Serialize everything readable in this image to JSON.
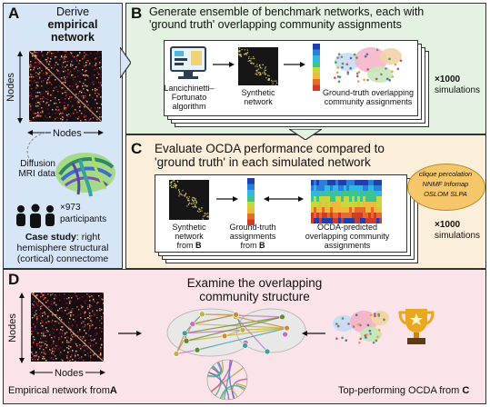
{
  "panelA": {
    "letter": "A",
    "title_line1": "Derive",
    "title_line2": "empirical",
    "title_line3": "network",
    "axis_y": "Nodes",
    "axis_x": "Nodes",
    "mri_line1": "Diffusion",
    "mri_line2": "MRI data",
    "participants_count": "×973",
    "participants_label": "participants",
    "case_bold": "Case study",
    "case_rest1": ": right",
    "case_rest2": "hemisphere structural",
    "case_rest3": "(cortical) connectome"
  },
  "panelB": {
    "letter": "B",
    "title_line1": "Generate ensemble of benchmark networks, each with",
    "title_line2": "'ground truth' overlapping community assignments",
    "algo_line1": "Lancichinetti–",
    "algo_line2": "Fortunato",
    "algo_line3": "algorithm",
    "synthetic_line1": "Synthetic",
    "synthetic_line2": "network",
    "gt_line1": "Ground-truth overlapping",
    "gt_line2": "community assignments",
    "sim_count": "×1000",
    "sim_label": "simulations"
  },
  "panelC": {
    "letter": "C",
    "title_line1": "Evaluate OCDA performance compared to",
    "title_line2": "'ground truth' in each simulated network",
    "syn_line1": "Synthetic",
    "syn_line2": "network",
    "syn_line3": "from",
    "syn_ref": "B",
    "gt_line1": "Ground-truth",
    "gt_line2": "assignments",
    "gt_line3": "from",
    "gt_ref": "B",
    "pred_line1": "OCDA-predicted",
    "pred_line2": "overlapping community",
    "pred_line3": "assignments",
    "algos_line1": "clique percolation",
    "algos_line2": "NNMF  Infomap",
    "algos_line3": "OSLOM  SLPA",
    "sim_count": "×1000",
    "sim_label": "simulations"
  },
  "panelD": {
    "letter": "D",
    "title_line1": "Examine the overlapping",
    "title_line2": "community structure",
    "axis_y": "Nodes",
    "axis_x": "Nodes",
    "emp_label": "Empirical network from",
    "emp_ref": "A",
    "top_label": "Top-performing OCDA from",
    "top_ref": "C"
  },
  "colors": {
    "panelA_bg": "#d6e6f6",
    "panelB_bg": "#e3f2e1",
    "panelC_bg": "#fbefdc",
    "panelD_bg": "#fbe3ea",
    "badge_bg": "#f6c76a",
    "trophy": "#e8a820"
  },
  "icons": [
    "computer-icon",
    "people-icon",
    "brain-tractography-icon",
    "trophy-icon"
  ]
}
